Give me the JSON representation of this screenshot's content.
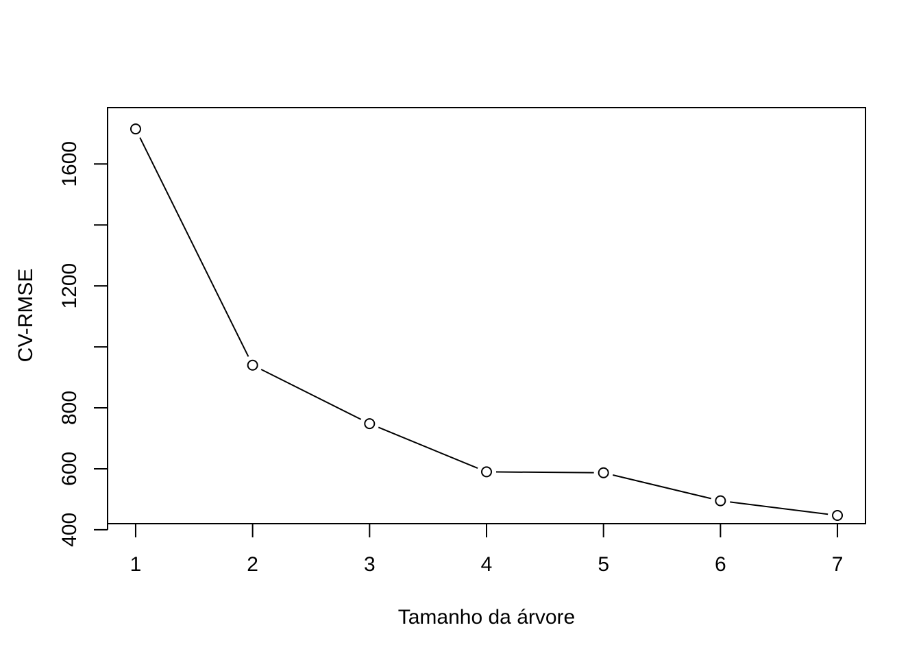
{
  "chart_data": {
    "type": "line",
    "title": "",
    "xlabel": "Tamanho da árvore",
    "ylabel": "CV-RMSE",
    "x": [
      1,
      2,
      3,
      4,
      5,
      6,
      7
    ],
    "y": [
      1715,
      940,
      748,
      590,
      587,
      495,
      447
    ],
    "xticks": [
      "1",
      "2",
      "3",
      "4",
      "5",
      "6",
      "7"
    ],
    "yticks": [
      400,
      600,
      800,
      1200,
      1600
    ],
    "yticks_minor": [
      400,
      600,
      800,
      1000,
      1200,
      1400,
      1600
    ],
    "xlim": [
      0.76,
      7.24
    ],
    "ylim": [
      420,
      1785
    ],
    "grid": false,
    "legend": "none",
    "colors": {
      "line": "#000000",
      "marker_fill": "#ffffff",
      "background": "#ffffff"
    }
  }
}
